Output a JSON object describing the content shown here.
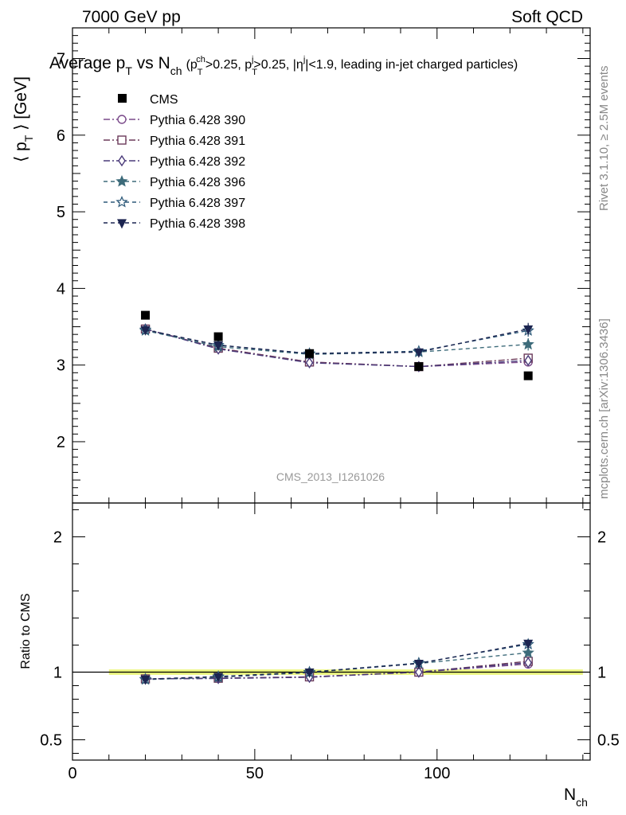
{
  "header": {
    "energy": "7000 GeV pp",
    "process": "Soft QCD",
    "rivet": "Rivet 3.1.10, ≥ 2.5M events",
    "mcplots": "mcplots.cern.ch [arXiv:1306.3436]",
    "analysis": "CMS_2013_I1261026"
  },
  "chart_data": {
    "type": "line",
    "title": {
      "main": "Average p",
      "main_sub": "T",
      "vs": " vs N",
      "vs_sub": "ch",
      "cuts": "(p",
      "cuts_sub1": "T",
      "cuts_sup1": "ch",
      "cuts_mid1": ">0.25, p",
      "cuts_sub2": "T",
      "cuts_sup2": "j",
      "cuts_mid2": ">0.25, |η",
      "cuts_sup3": "j",
      "cuts_end": "|<1.9, leading in-jet charged particles)"
    },
    "xlabel": "N",
    "xlabel_sub": "ch",
    "ylabel": "⟨ p",
    "ylabel_sub": "T",
    "ylabel_end": " ⟩ [GeV]",
    "ratio_ylabel": "Ratio to CMS",
    "xlim": [
      0,
      142
    ],
    "ylim": [
      1.2,
      7.4
    ],
    "ratio_ylim": [
      0.35,
      2.25
    ],
    "x_ticks": [
      0,
      50,
      100
    ],
    "x_tick_labels": [
      "0",
      "50",
      "100"
    ],
    "y_ticks": [
      2,
      3,
      4,
      5,
      6,
      7
    ],
    "y_tick_labels": [
      "2",
      "3",
      "4",
      "5",
      "6",
      "7"
    ],
    "ratio_ticks": [
      0.5,
      1,
      2
    ],
    "ratio_tick_labels": [
      "0.5",
      "1",
      "2"
    ],
    "ratio_band": [
      10,
      140
    ],
    "x": [
      20,
      40,
      65,
      95,
      125
    ],
    "data": {
      "name": "CMS",
      "values": [
        3.65,
        3.37,
        3.15,
        2.98,
        2.86
      ]
    },
    "series": [
      {
        "name": "Pythia 6.428 390",
        "color": "#7a4a8a",
        "marker": "circle-open",
        "dash": "8,3,2,3",
        "values": [
          3.47,
          3.22,
          3.04,
          2.98,
          3.04
        ],
        "errors": [
          0,
          0,
          0,
          0,
          0.05
        ],
        "ratio": [
          0.95,
          0.955,
          0.965,
          1.0,
          1.06
        ]
      },
      {
        "name": "Pythia 6.428 391",
        "color": "#6b3a5a",
        "marker": "square-open",
        "dash": "8,3,2,3",
        "values": [
          3.47,
          3.22,
          3.04,
          2.98,
          3.09
        ],
        "errors": [
          0,
          0,
          0,
          0,
          0.05
        ],
        "ratio": [
          0.95,
          0.955,
          0.965,
          1.0,
          1.08
        ]
      },
      {
        "name": "Pythia 6.428 392",
        "color": "#4a3a7a",
        "marker": "diamond-open",
        "dash": "8,3,2,3",
        "values": [
          3.47,
          3.21,
          3.03,
          2.98,
          3.06
        ],
        "errors": [
          0,
          0,
          0,
          0,
          0.05
        ],
        "ratio": [
          0.95,
          0.953,
          0.962,
          1.0,
          1.07
        ]
      },
      {
        "name": "Pythia 6.428 396",
        "color": "#3d6b7a",
        "marker": "star-filled",
        "dash": "5,4",
        "values": [
          3.45,
          3.24,
          3.14,
          3.17,
          3.27
        ],
        "errors": [
          0,
          0,
          0,
          0,
          0.08
        ],
        "ratio": [
          0.945,
          0.962,
          0.997,
          1.064,
          1.143
        ]
      },
      {
        "name": "Pythia 6.428 397",
        "color": "#2e5a7a",
        "marker": "star-open",
        "dash": "5,4",
        "values": [
          3.46,
          3.26,
          3.15,
          3.18,
          3.45
        ],
        "errors": [
          0,
          0,
          0,
          0,
          0.08
        ],
        "ratio": [
          0.948,
          0.967,
          1.0,
          1.067,
          1.206
        ]
      },
      {
        "name": "Pythia 6.428 398",
        "color": "#1c2550",
        "marker": "triangle-down-filled",
        "dash": "5,4",
        "values": [
          3.46,
          3.26,
          3.15,
          3.17,
          3.47
        ],
        "errors": [
          0,
          0,
          0,
          0,
          0.08
        ],
        "ratio": [
          0.948,
          0.967,
          1.0,
          1.064,
          1.213
        ]
      }
    ]
  }
}
